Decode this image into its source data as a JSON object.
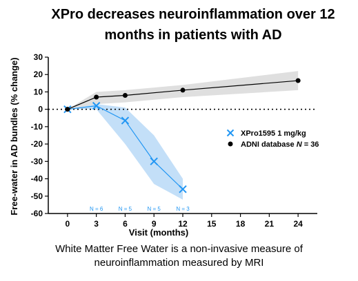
{
  "chart_data": {
    "type": "line",
    "title": "XPro decreases neuroinflammation over 12\nmonths in patients with AD",
    "xlabel": "Visit (months)",
    "ylabel": "Free-water in AD bundles (% change)",
    "xticks": [
      0,
      3,
      6,
      9,
      12,
      15,
      18,
      21,
      24
    ],
    "yticks": [
      30,
      20,
      10,
      0,
      -10,
      -20,
      -30,
      -40,
      -50,
      -60
    ],
    "xlim": [
      -2,
      26
    ],
    "ylim": [
      -60,
      30
    ],
    "reference_line": 0,
    "legend_position": "right",
    "series": [
      {
        "name": "XPro1595 1 mg/kg",
        "color": "#2196f3",
        "band_color": "#b9d9f7",
        "marker": "x",
        "x": [
          0,
          3,
          6,
          9,
          12
        ],
        "y": [
          0,
          2,
          -6.5,
          -30,
          -46
        ],
        "lower": [
          0,
          0,
          -20,
          -43,
          -52
        ],
        "upper": [
          0,
          3,
          1,
          -15,
          -40
        ]
      },
      {
        "name": "ADNI database N = 36",
        "name_prefix": "ADNI database ",
        "name_italic": "N",
        "name_suffix": " = 36",
        "color": "#000000",
        "band_color": "#d9d9d9",
        "marker": "circle",
        "x": [
          0,
          3,
          6,
          12,
          24
        ],
        "y": [
          0,
          7,
          8,
          11,
          16.5
        ],
        "lower": [
          0,
          3,
          4,
          7,
          11
        ],
        "upper": [
          0,
          10,
          11,
          14,
          22
        ]
      }
    ],
    "annotations": [
      {
        "text": "N = 6",
        "x": 3
      },
      {
        "text": "N = 5",
        "x": 6
      },
      {
        "text": "N = 5",
        "x": 9
      },
      {
        "text": "N = 3",
        "x": 12
      }
    ]
  },
  "caption": "White Matter Free Water is a non-invasive measure of\nneuroinflammation measured by MRI"
}
